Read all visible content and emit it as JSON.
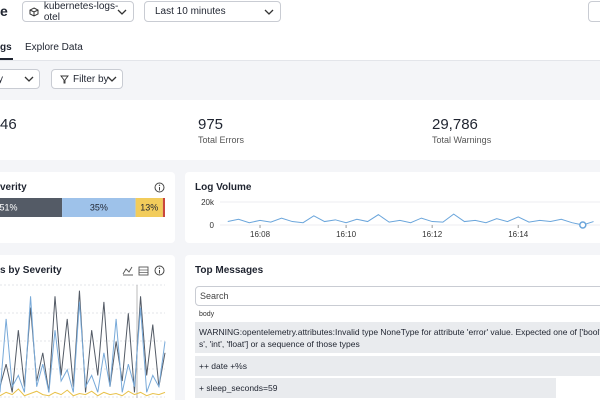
{
  "header": {
    "title": "e",
    "index_selector": "kubernetes-logs-otel",
    "time_range": "Last 10 minutes"
  },
  "tabs": [
    "gs",
    "Explore Data"
  ],
  "toolbar": {
    "group_by": "y",
    "filter_by": "Filter by"
  },
  "stats": [
    {
      "value": "46"
    },
    {
      "value": "975",
      "label": "Total Errors"
    },
    {
      "value": "29,786",
      "label": "Total Warnings"
    }
  ],
  "chart_data": [
    {
      "type": "stacked_bar",
      "title": "verity",
      "series": [
        {
          "color": "#545b66",
          "values": [
            51
          ],
          "value_labels": [
            "51%"
          ]
        },
        {
          "color": "#9ec2ea",
          "values": [
            35
          ],
          "value_labels": [
            "35%"
          ]
        },
        {
          "color": "#f2cc5b",
          "values": [
            13
          ],
          "value_labels": [
            "13%"
          ]
        },
        {
          "color": "#c9463d",
          "values": [
            1
          ]
        }
      ]
    },
    {
      "type": "line",
      "title": "Log Volume",
      "color": "#6aa5db",
      "x": [
        7.25,
        7.5,
        7.75,
        8,
        8.25,
        8.5,
        8.75,
        9,
        9.25,
        9.5,
        9.75,
        10,
        10.25,
        10.5,
        10.75,
        11,
        11.25,
        11.5,
        11.75,
        12,
        12.25,
        12.5,
        12.75,
        13,
        13.25,
        13.5,
        13.75,
        14,
        14.25,
        14.5,
        14.75,
        15,
        15.25,
        15.5,
        15.75
      ],
      "values": [
        3000,
        5000,
        2000,
        4000,
        2500,
        6000,
        3000,
        2000,
        8000,
        3000,
        4500,
        2000,
        5000,
        3000,
        9000,
        2500,
        4000,
        2000,
        6000,
        3000,
        2500,
        9500,
        3000,
        4000,
        2000,
        5500,
        3000,
        7000,
        2500,
        4000,
        3000,
        5000,
        2000,
        0,
        3000
      ],
      "xlim": [
        7.07,
        15.9
      ],
      "ylim": [
        0,
        20000
      ],
      "yticks": [
        {
          "value": 20000,
          "label": "20k"
        },
        0
      ],
      "xticks": [
        {
          "value": 8,
          "label": "16:08"
        },
        {
          "value": 10,
          "label": "16:10"
        },
        {
          "value": 12,
          "label": "16:12"
        },
        {
          "value": 14,
          "label": "16:14"
        }
      ]
    },
    {
      "type": "line",
      "title": "s by Severity",
      "ylim": [
        0,
        100
      ],
      "series": [
        {
          "color": "#545b66",
          "values": [
            10,
            30,
            5,
            60,
            10,
            80,
            15,
            40,
            5,
            90,
            20,
            70,
            10,
            95,
            5,
            60,
            20,
            85,
            10,
            50,
            15,
            75,
            5,
            90,
            20,
            65,
            10,
            40
          ]
        },
        {
          "color": "#79aad9",
          "values": [
            5,
            70,
            10,
            20,
            5,
            90,
            10,
            30,
            5,
            60,
            15,
            25,
            5,
            85,
            10,
            20,
            5,
            40,
            10,
            70,
            5,
            30,
            10,
            80,
            5,
            20,
            10,
            50
          ]
        },
        {
          "color": "#e8c14a",
          "values": [
            2,
            5,
            3,
            8,
            2,
            4,
            6,
            3,
            2,
            5,
            3,
            7,
            2,
            4,
            3,
            6,
            2,
            5,
            3,
            4,
            2,
            6,
            3,
            5,
            2,
            4,
            3,
            5
          ]
        }
      ]
    }
  ],
  "top_messages": {
    "title": "Top Messages",
    "search_placeholder": "Search",
    "column": "body",
    "rows": [
      [
        "WARNING:opentelemetry.attributes:Invalid type NoneType for attribute 'error' value. Expected one of ['bool', 'str', 'b",
        "s', 'int', 'float'] or a sequence of those types"
      ],
      [
        "++ date +%s"
      ],
      [
        "+ sleep_seconds=59"
      ]
    ]
  }
}
